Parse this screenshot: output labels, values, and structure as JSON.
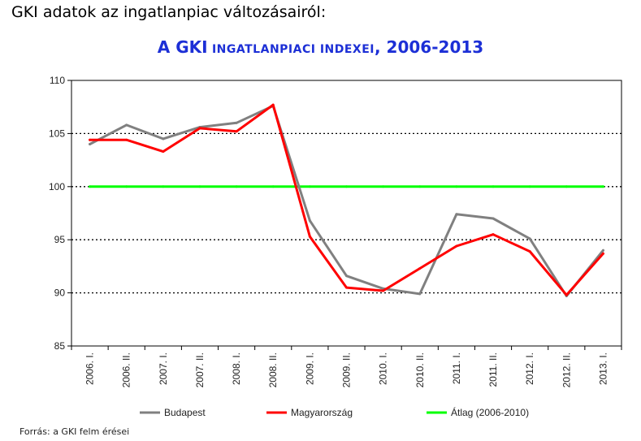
{
  "page": {
    "heading": "GKI adatok az ingatlanpiac változásairól:",
    "source": "Forrás: a GKI felm érései"
  },
  "chart_data": {
    "type": "line",
    "title_prefix": "A GKI",
    "title_main": " INGATLANPIACI INDEXEI",
    "title_suffix": ", 2006-2013",
    "categories": [
      "2006. I.",
      "2006. II.",
      "2007. I.",
      "2007. II.",
      "2008. I.",
      "2008. II.",
      "2009. I.",
      "2009. II.",
      "2010. I.",
      "2010. II.",
      "2011. I.",
      "2011. II.",
      "2012. I.",
      "2012. II.",
      "2013. I."
    ],
    "ylim": [
      85,
      110
    ],
    "yticks": [
      85,
      90,
      95,
      100,
      105,
      110
    ],
    "grid": "horizontal dotted",
    "legend_position": "bottom",
    "series": [
      {
        "name": "Budapest",
        "color": "#808080",
        "values": [
          104.0,
          105.8,
          104.5,
          105.6,
          106.0,
          107.6,
          96.8,
          91.6,
          90.4,
          89.9,
          97.4,
          97.0,
          95.1,
          89.7,
          94.0
        ]
      },
      {
        "name": "Magyarország",
        "color": "#ff0000",
        "values": [
          104.4,
          104.4,
          103.3,
          105.5,
          105.2,
          107.7,
          95.3,
          90.5,
          90.2,
          92.3,
          94.4,
          95.5,
          93.9,
          89.8,
          93.7
        ]
      },
      {
        "name": "Átlag (2006-2010)",
        "color": "#00ff00",
        "values": [
          100,
          100,
          100,
          100,
          100,
          100,
          100,
          100,
          100,
          100,
          100,
          100,
          100,
          100,
          100
        ]
      }
    ]
  }
}
